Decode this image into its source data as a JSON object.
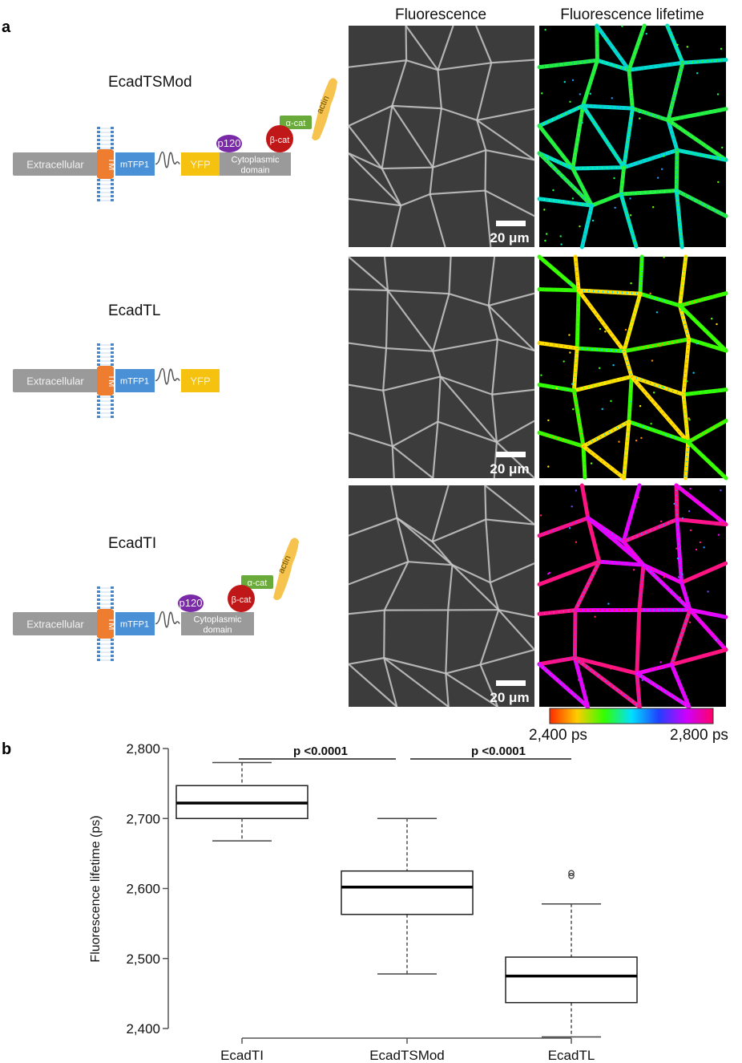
{
  "panel_a": {
    "letter": "a",
    "column_titles": [
      "Fluorescence",
      "Fluorescence lifetime"
    ],
    "scale_bar_label": "20 μm",
    "colorbar": {
      "min_label": "2,400 ps",
      "max_label": "2,800 ps",
      "colors": [
        "#ff2a00",
        "#ffcc00",
        "#33ff00",
        "#00e0ff",
        "#2040ff",
        "#cc00ff",
        "#ff0066"
      ]
    },
    "constructs": [
      {
        "name": "EcadTSMod",
        "domains": {
          "extracellular": "Extracellular",
          "tm": "TM",
          "donor": "mTFP1",
          "acceptor": "YFP",
          "cyto_1": "Cytoplasmic",
          "cyto_2": "domain",
          "p120": "p120",
          "bcat": "β-cat",
          "acat": "α-cat",
          "actin": "actin"
        },
        "lifetime_colors": [
          "#22ee44",
          "#00ddcc",
          "#33ff22",
          "#2299ff",
          "#66ff00"
        ]
      },
      {
        "name": "EcadTL",
        "domains": {
          "extracellular": "Extracellular",
          "tm": "TM",
          "donor": "mTFP1",
          "acceptor": "YFP"
        },
        "lifetime_colors": [
          "#33ff00",
          "#ffe000",
          "#66ff00",
          "#ff8800",
          "#00ccff"
        ]
      },
      {
        "name": "EcadTI",
        "domains": {
          "extracellular": "Extracellular",
          "tm": "TM",
          "donor": "mTFP1",
          "cyto_1": "Cytoplasmic",
          "cyto_2": "domain",
          "p120": "p120",
          "bcat": "β-cat",
          "acat": "α-cat",
          "actin": "actin"
        },
        "lifetime_colors": [
          "#ff1188",
          "#ee00ff",
          "#ff2255",
          "#7744ff",
          "#2299ff"
        ]
      }
    ],
    "domain_colors": {
      "extracellular": "#9a9a9a",
      "tm": "#ef7d2f",
      "donor": "#4a90d6",
      "acceptor": "#f5c20f",
      "p120": "#7a2aa6",
      "bcat": "#c01818",
      "acat": "#6aaa3a",
      "actin": "#f6c44e",
      "membrane": "#4a86c6"
    }
  },
  "panel_b": {
    "letter": "b",
    "comparisons": [
      {
        "label": "p <0.0001",
        "from": "EcadTI",
        "to": "EcadTSMod"
      },
      {
        "label": "p <0.0001",
        "from": "EcadTSMod",
        "to": "EcadTL"
      }
    ]
  },
  "chart_data": {
    "type": "box",
    "title": "",
    "xlabel": "",
    "ylabel": "Fluorescence lifetime (ps)",
    "ylim": [
      2400,
      2800
    ],
    "yticks": [
      "2,400",
      "2,500",
      "2,600",
      "2,700",
      "2,800"
    ],
    "ytick_values": [
      2400,
      2500,
      2600,
      2700,
      2800
    ],
    "categories": [
      "EcadTI",
      "EcadTSMod",
      "EcadTL"
    ],
    "boxes": [
      {
        "category": "EcadTI",
        "whisker_low": 2668,
        "q1": 2700,
        "median": 2722,
        "q3": 2747,
        "whisker_high": 2780,
        "outliers": []
      },
      {
        "category": "EcadTSMod",
        "whisker_low": 2478,
        "q1": 2563,
        "median": 2602,
        "q3": 2625,
        "whisker_high": 2700,
        "outliers": []
      },
      {
        "category": "EcadTL",
        "whisker_low": 2388,
        "q1": 2437,
        "median": 2475,
        "q3": 2502,
        "whisker_high": 2578,
        "outliers": [
          2618,
          2622
        ]
      }
    ],
    "grid": false
  }
}
